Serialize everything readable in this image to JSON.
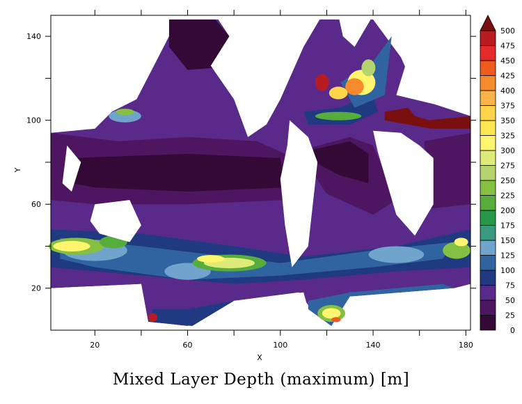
{
  "chart_data": {
    "type": "heatmap",
    "title": "Mixed Layer Depth (maximum) [m]",
    "xlabel": "X",
    "ylabel": "Y",
    "xlim": [
      1,
      182
    ],
    "ylim": [
      0,
      150
    ],
    "xticks": [
      20,
      60,
      100,
      140,
      180
    ],
    "xticks_minor": [
      40,
      80,
      120,
      160
    ],
    "yticks": [
      20,
      60,
      100,
      140
    ],
    "yticks_minor": [
      40,
      80,
      120
    ],
    "grid": false,
    "colorbar": {
      "levels": [
        0,
        25,
        50,
        75,
        100,
        125,
        150,
        175,
        200,
        225,
        250,
        275,
        300,
        325,
        350,
        375,
        400,
        425,
        450,
        475,
        500
      ],
      "colors": [
        "#330a35",
        "#4e1660",
        "#5a2a8a",
        "#1f3a80",
        "#2f64a0",
        "#70a4cc",
        "#3a9a80",
        "#25984a",
        "#56ad3c",
        "#85c043",
        "#b6d46e",
        "#dfeb78",
        "#fff56e",
        "#fde64f",
        "#fdd44a",
        "#f9b349",
        "#f58a2d",
        "#ef5a1e",
        "#e52a2a",
        "#b81c22"
      ],
      "over_color": "#7a0f0f",
      "extend": "max",
      "placement": "right"
    },
    "missing_color": "#ffffff"
  }
}
